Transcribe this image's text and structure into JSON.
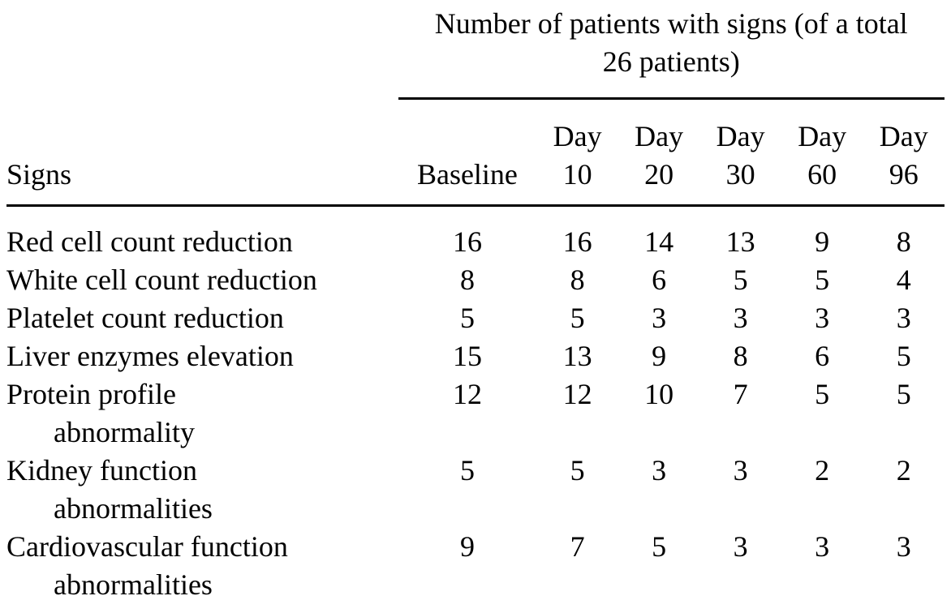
{
  "table": {
    "group_header": "Number of patients with signs (of a total 26 patients)",
    "signs_header": "Signs",
    "columns": [
      "Baseline",
      "Day 10",
      "Day 20",
      "Day 30",
      "Day 60",
      "Day 96"
    ],
    "rows": [
      {
        "sign": "Red cell count reduction",
        "sign_lines": [
          "Red cell count reduction"
        ],
        "values": [
          16,
          16,
          14,
          13,
          9,
          8
        ]
      },
      {
        "sign": "White cell count reduction",
        "sign_lines": [
          "White cell count reduction"
        ],
        "values": [
          8,
          8,
          6,
          5,
          5,
          4
        ]
      },
      {
        "sign": "Platelet count reduction",
        "sign_lines": [
          "Platelet count reduction"
        ],
        "values": [
          5,
          5,
          3,
          3,
          3,
          3
        ]
      },
      {
        "sign": "Liver enzymes elevation",
        "sign_lines": [
          "Liver enzymes elevation"
        ],
        "values": [
          15,
          13,
          9,
          8,
          6,
          5
        ]
      },
      {
        "sign": "Protein profile abnormality",
        "sign_lines": [
          "Protein profile",
          "abnormality"
        ],
        "values": [
          12,
          12,
          10,
          7,
          5,
          5
        ]
      },
      {
        "sign": "Kidney function abnormalities",
        "sign_lines": [
          "Kidney function",
          "abnormalities"
        ],
        "values": [
          5,
          5,
          3,
          3,
          2,
          2
        ]
      },
      {
        "sign": "Cardiovascular function abnormalities",
        "sign_lines": [
          "Cardiovascular function",
          "abnormalities"
        ],
        "values": [
          9,
          7,
          5,
          3,
          3,
          3
        ]
      }
    ],
    "colors": {
      "text": "#000000",
      "background": "#ffffff",
      "rule": "#000000"
    }
  }
}
